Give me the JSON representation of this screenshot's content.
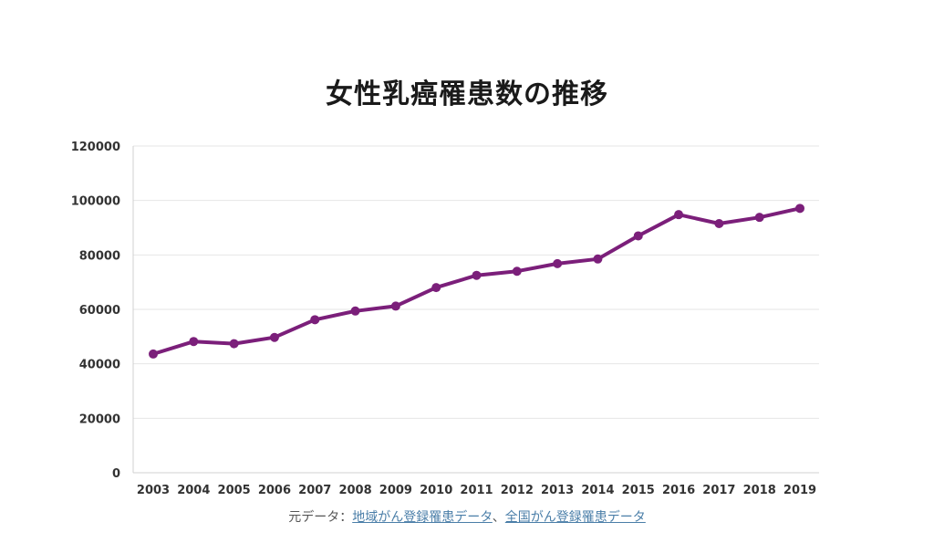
{
  "chart_data": {
    "type": "line",
    "title": "女性乳癌罹患数の推移",
    "categories": [
      "2003",
      "2004",
      "2005",
      "2006",
      "2007",
      "2008",
      "2009",
      "2010",
      "2011",
      "2012",
      "2013",
      "2014",
      "2015",
      "2016",
      "2017",
      "2018",
      "2019"
    ],
    "series": [
      {
        "values": [
          43600,
          48200,
          47400,
          49700,
          56200,
          59400,
          61200,
          68000,
          72500,
          74000,
          76800,
          78500,
          87000,
          94800,
          91500,
          93800,
          97100
        ]
      }
    ],
    "ylim": [
      0,
      120000
    ],
    "yticks": [
      "0",
      "20000",
      "40000",
      "60000",
      "80000",
      "100000",
      "120000"
    ],
    "grid": true,
    "line_color": "#7b1f7a"
  },
  "source": {
    "prefix": "元データ：",
    "link1": "地域がん登録罹患データ",
    "separator": "、",
    "link2": "全国がん登録罹患データ"
  }
}
